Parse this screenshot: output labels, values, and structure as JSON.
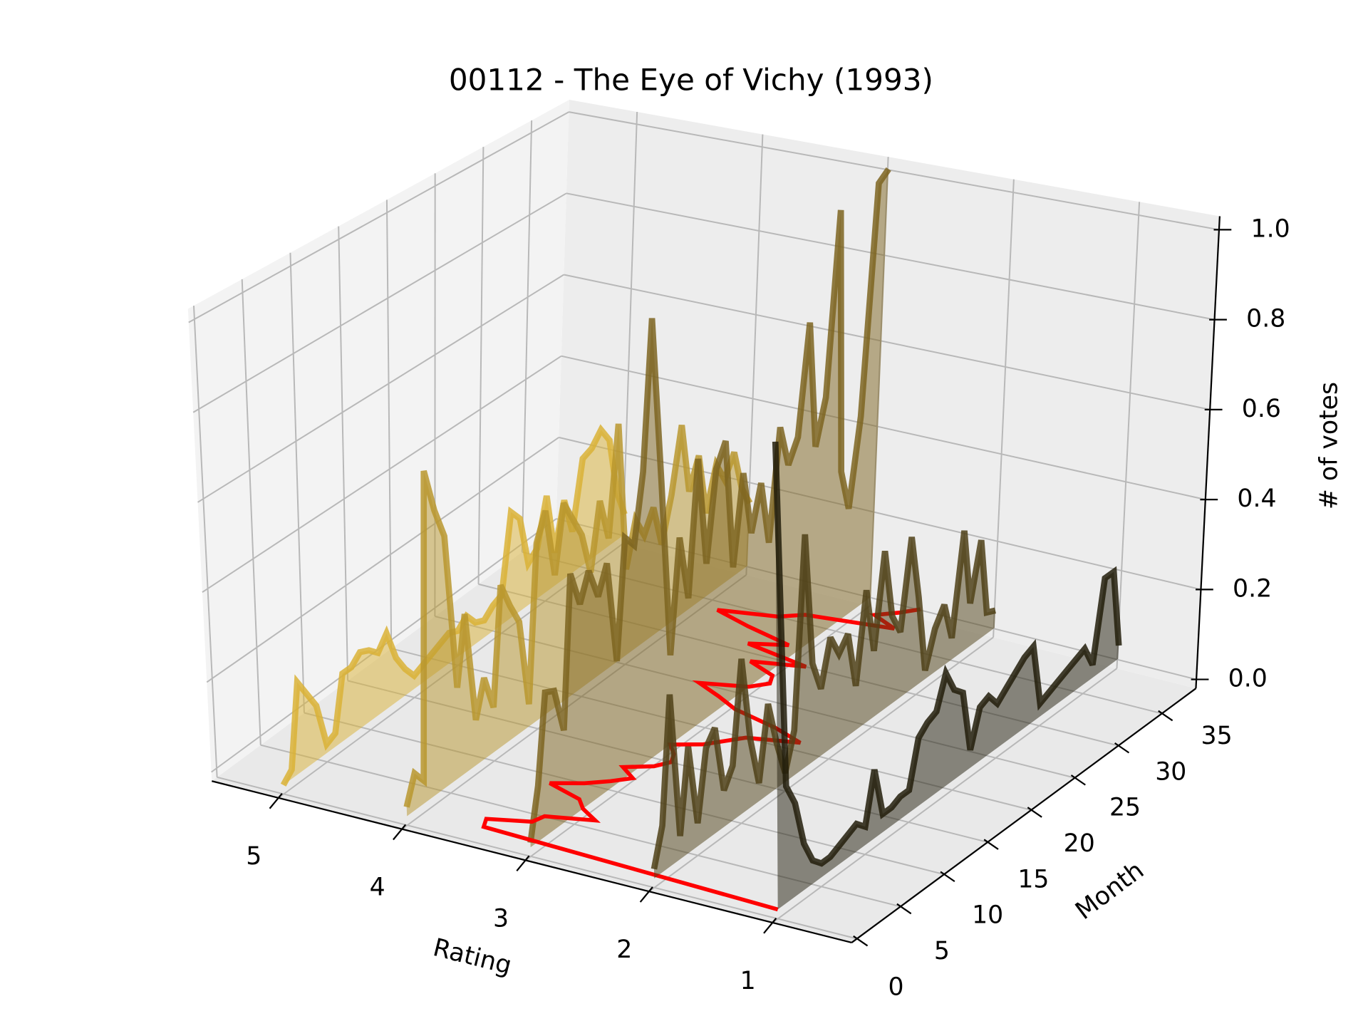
{
  "chart_data": {
    "type": "line3d",
    "title": "00112 - The Eye of Vichy (1993)",
    "xlabel": "Rating",
    "ylabel": "Month",
    "zlabel": "# of votes",
    "xlim": [
      0.36,
      5.54
    ],
    "ylim": [
      -0.6,
      38.9
    ],
    "zlim": [
      -0.02,
      1.03
    ],
    "xticks": [
      1,
      2,
      3,
      4,
      5
    ],
    "yticks": [
      0,
      5,
      10,
      15,
      20,
      25,
      30,
      35
    ],
    "zticks": [
      {
        "value": 0,
        "label": "0.0"
      },
      0.2,
      0.4,
      0.6,
      0.8,
      {
        "value": 1,
        "label": "1.0"
      }
    ],
    "x": [
      0,
      1,
      2,
      3,
      4,
      5,
      6,
      7,
      8,
      9,
      10,
      11,
      12,
      13,
      14,
      15,
      16,
      17,
      18,
      19,
      20,
      21,
      22,
      23,
      24,
      25,
      26,
      27,
      28,
      29,
      30,
      31,
      32,
      33,
      34,
      35,
      36,
      37,
      38,
      39
    ],
    "series": [
      {
        "rating": 5,
        "color": "#d9b236",
        "values": [
          0.0,
          0.02,
          0.2,
          0.16,
          0.12,
          0.02,
          0.03,
          0.15,
          0.15,
          0.17,
          0.16,
          0.14,
          0.17,
          0.1,
          0.06,
          0.03,
          0.04,
          0.05,
          0.06,
          0.07,
          0.06,
          0.08,
          0.05,
          0.04,
          0.06,
          0.07,
          0.25,
          0.22,
          0.1,
          0.12,
          0.23,
          0.08,
          0.19,
          0.1,
          0.26,
          0.27,
          0.3,
          0.26,
          0.12,
          0.05
        ]
      },
      {
        "rating": 4,
        "color": "#b8962e",
        "values": [
          0.02,
          0.08,
          0.05,
          0.72,
          0.62,
          0.55,
          0.2,
          0.35,
          0.1,
          0.18,
          0.1,
          0.36,
          0.3,
          0.25,
          0.05,
          0.4,
          0.46,
          0.3,
          0.45,
          0.4,
          0.35,
          0.25,
          0.4,
          0.3,
          0.55,
          0.2,
          0.3,
          0.25,
          0.3,
          0.2,
          0.3,
          0.45,
          0.28,
          0.35,
          0.2,
          0.3,
          0.25,
          0.3,
          0.2,
          0.15
        ]
      },
      {
        "rating": 3,
        "color": "#7d6420",
        "values": [
          0.01,
          0.12,
          0.31,
          0.3,
          0.2,
          0.53,
          0.45,
          0.51,
          0.44,
          0.5,
          0.27,
          0.53,
          0.5,
          0.65,
          0.98,
          0.6,
          0.2,
          0.45,
          0.3,
          0.6,
          0.35,
          0.55,
          0.6,
          0.3,
          0.5,
          0.35,
          0.45,
          0.3,
          0.55,
          0.45,
          0.5,
          0.75,
          0.45,
          0.55,
          0.97,
          0.35,
          0.25,
          0.45,
          0.98,
          1.0
        ]
      },
      {
        "rating": 2,
        "color": "#4f4117",
        "values": [
          0.02,
          0.1,
          0.37,
          0.05,
          0.23,
          0.05,
          0.2,
          0.23,
          0.08,
          0.12,
          0.34,
          0.15,
          0.04,
          0.2,
          0.1,
          0.02,
          0.1,
          0.52,
          0.22,
          0.15,
          0.25,
          0.2,
          0.23,
          0.1,
          0.3,
          0.15,
          0.36,
          0.2,
          0.15,
          0.35,
          0.2,
          0.02,
          0.1,
          0.14,
          0.05,
          0.28,
          0.1,
          0.23,
          0.05,
          0.04
        ]
      },
      {
        "rating": 1,
        "color": "#221d0b",
        "values": [
          1.0,
          0.25,
          0.2,
          0.1,
          0.05,
          0.03,
          0.03,
          0.04,
          0.05,
          0.06,
          0.04,
          0.15,
          0.04,
          0.04,
          0.05,
          0.05,
          0.15,
          0.17,
          0.18,
          0.25,
          0.2,
          0.18,
          0.04,
          0.12,
          0.13,
          0.1,
          0.12,
          0.14,
          0.16,
          0.17,
          0.03,
          0.04,
          0.05,
          0.06,
          0.07,
          0.08,
          0.03,
          0.21,
          0.21,
          0.03
        ]
      }
    ],
    "mean_rating": {
      "color": "#ff0000",
      "values": [
        1.0,
        3.45,
        3.5,
        3.2,
        3.17,
        2.83,
        3.0,
        3.1,
        3.41,
        3.2,
        3.06,
        2.95,
        3.1,
        2.92,
        2.85,
        2.9,
        3.0,
        2.8,
        2.7,
        2.6,
        2.23,
        2.5,
        2.9,
        3.1,
        3.33,
        3.0,
        2.9,
        2.95,
        3.2,
        2.82,
        3.36,
        3.1,
        3.5,
        3.82,
        3.4,
        3.25,
        2.6,
        2.83,
        2.7,
        2.6
      ]
    }
  }
}
